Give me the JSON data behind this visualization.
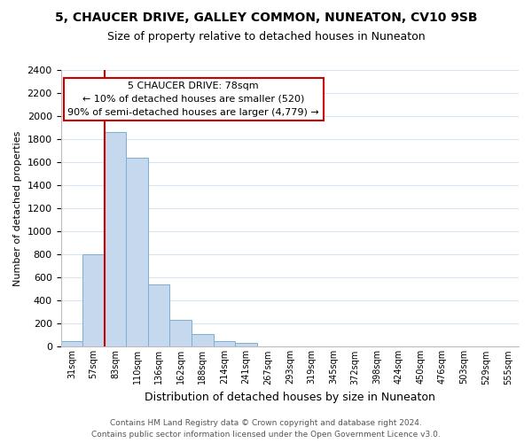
{
  "title1": "5, CHAUCER DRIVE, GALLEY COMMON, NUNEATON, CV10 9SB",
  "title2": "Size of property relative to detached houses in Nuneaton",
  "xlabel": "Distribution of detached houses by size in Nuneaton",
  "ylabel": "Number of detached properties",
  "bar_values": [
    50,
    800,
    1860,
    1640,
    540,
    235,
    110,
    50,
    35,
    0,
    0,
    0,
    0,
    0,
    0,
    0,
    0,
    0,
    0,
    0,
    0
  ],
  "bar_labels": [
    "31sqm",
    "57sqm",
    "83sqm",
    "110sqm",
    "136sqm",
    "162sqm",
    "188sqm",
    "214sqm",
    "241sqm",
    "267sqm",
    "293sqm",
    "319sqm",
    "345sqm",
    "372sqm",
    "398sqm",
    "424sqm",
    "450sqm",
    "476sqm",
    "503sqm",
    "529sqm",
    "555sqm"
  ],
  "bar_color": "#c5d8ee",
  "bar_edge_color": "#7aafd4",
  "ylim": [
    0,
    2400
  ],
  "yticks": [
    0,
    200,
    400,
    600,
    800,
    1000,
    1200,
    1400,
    1600,
    1800,
    2000,
    2200,
    2400
  ],
  "annotation_title": "5 CHAUCER DRIVE: 78sqm",
  "annotation_line1": "← 10% of detached houses are smaller (520)",
  "annotation_line2": "90% of semi-detached houses are larger (4,779) →",
  "vline_color": "#cc0000",
  "box_color": "#ffffff",
  "box_edge_color": "#cc0000",
  "footer1": "Contains HM Land Registry data © Crown copyright and database right 2024.",
  "footer2": "Contains public sector information licensed under the Open Government Licence v3.0.",
  "background_color": "#ffffff",
  "grid_color": "#d8e4f0"
}
